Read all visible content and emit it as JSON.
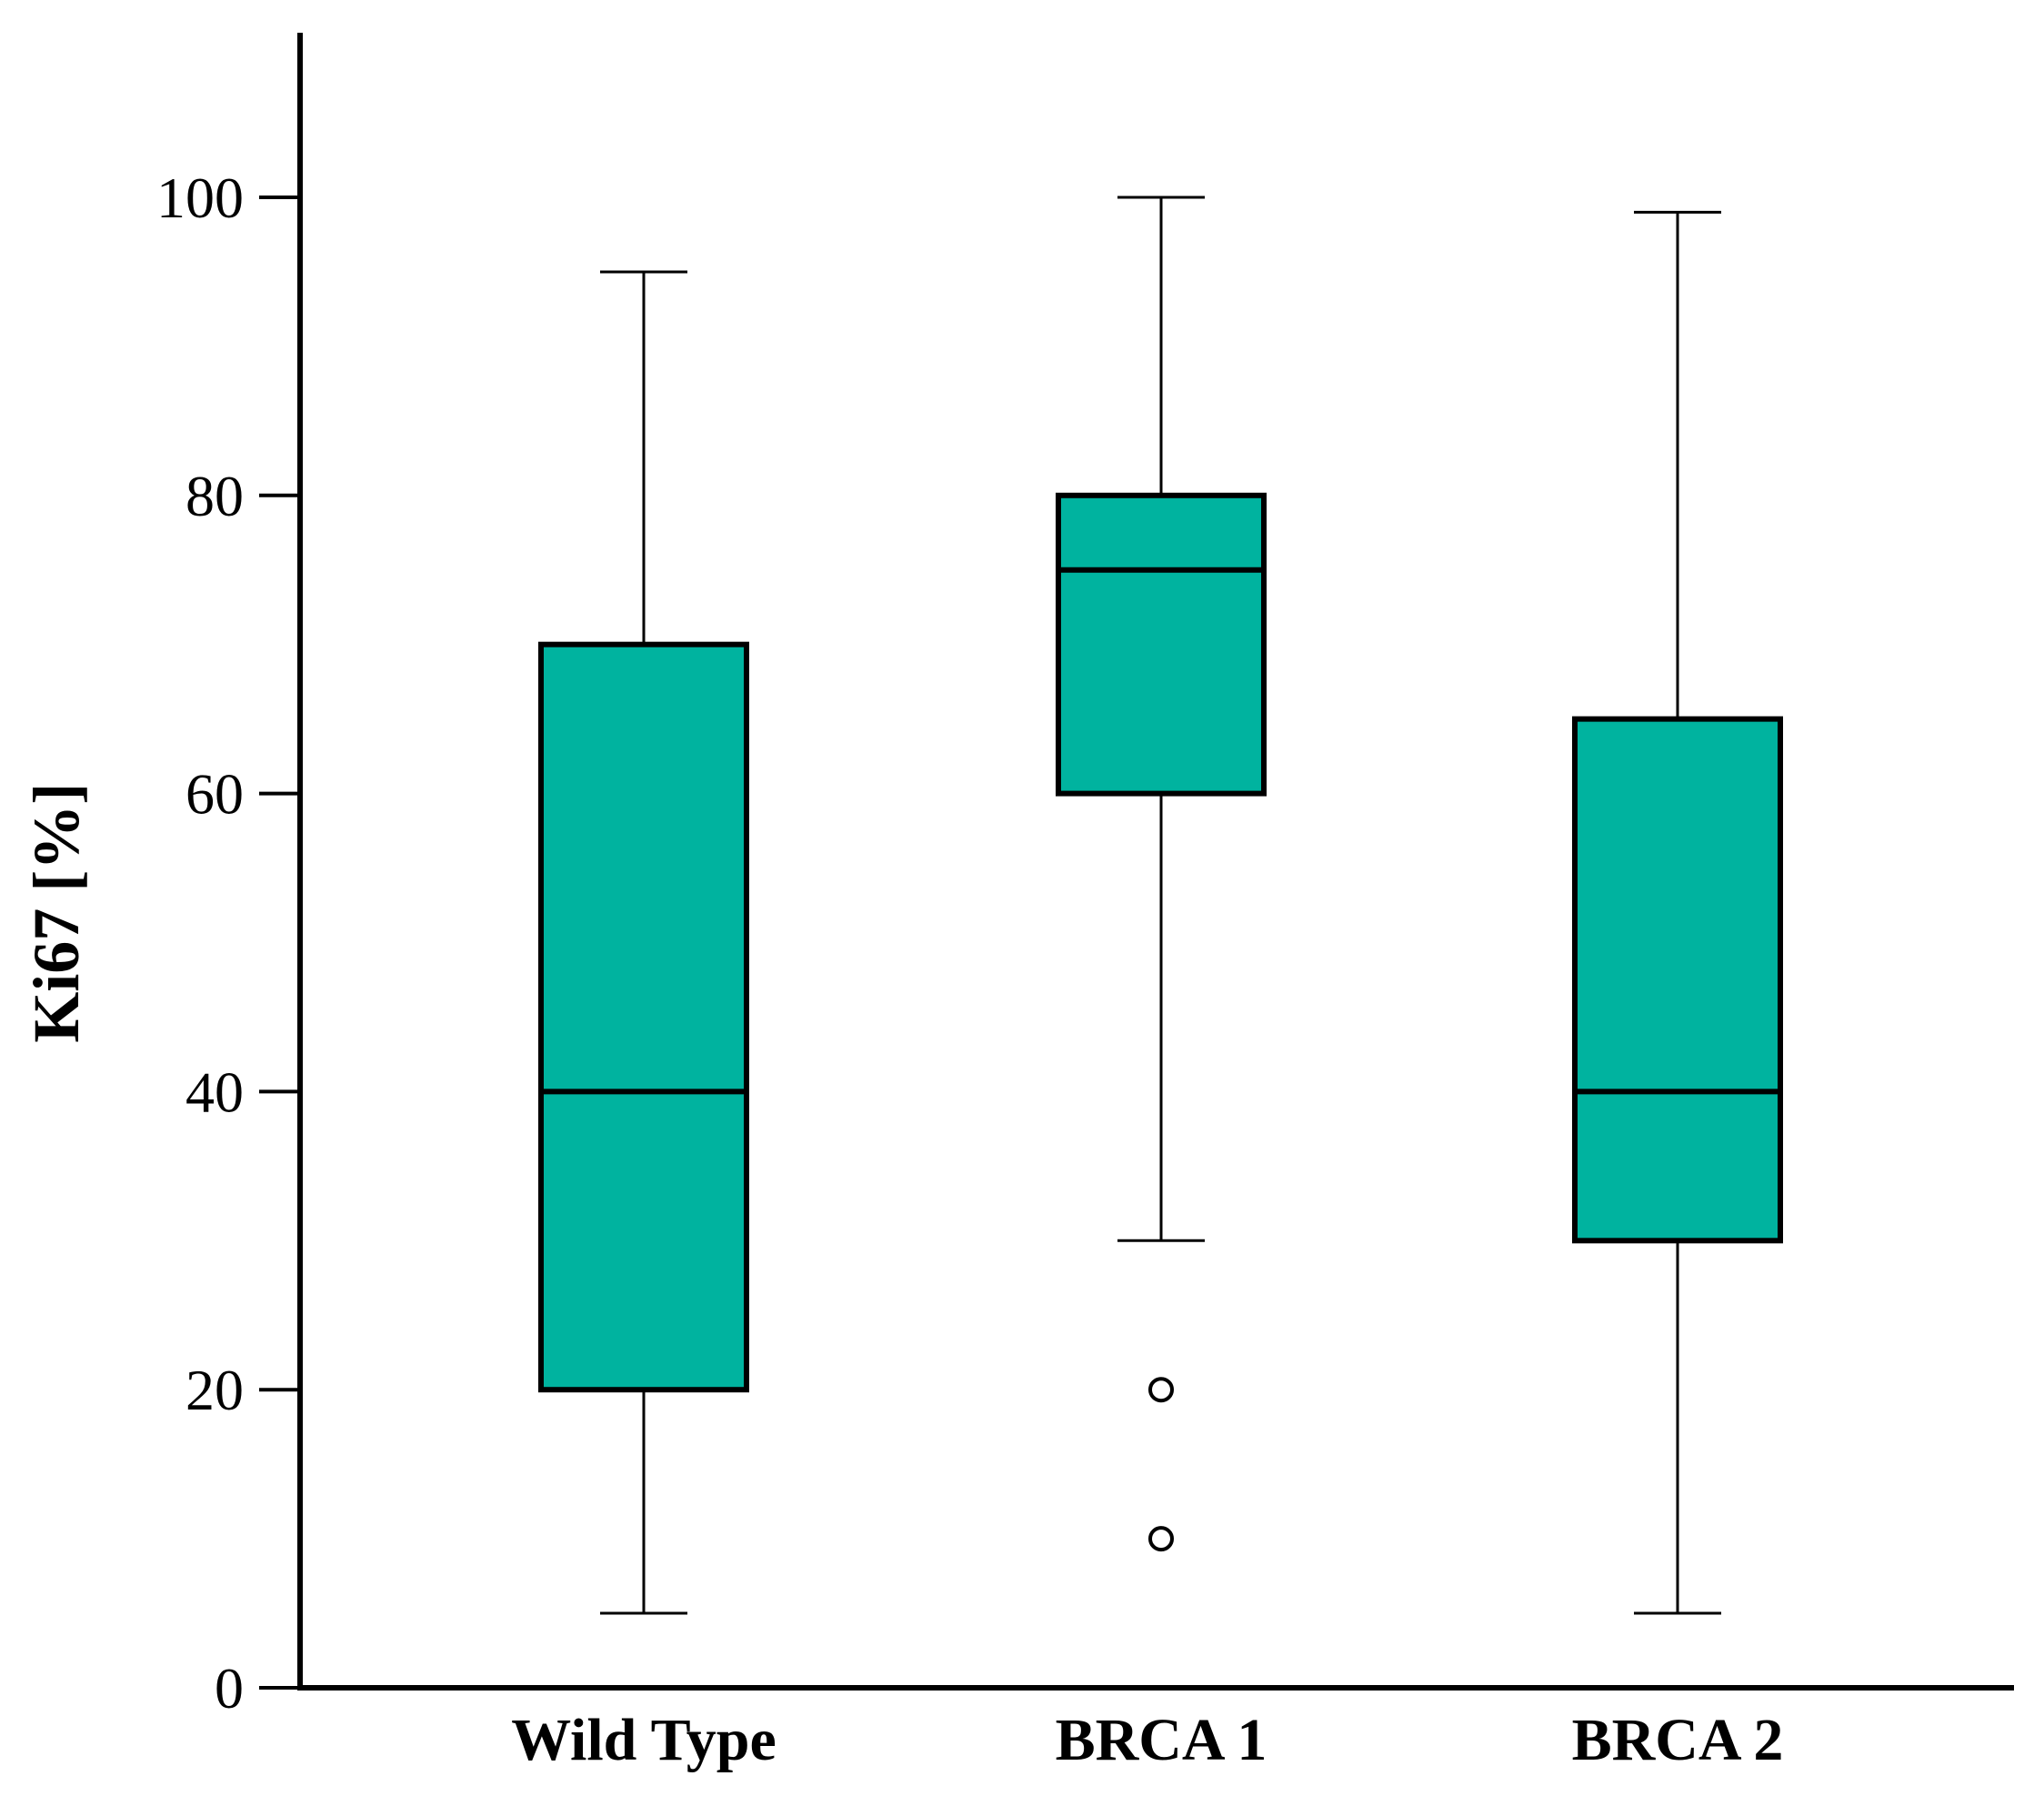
{
  "chart_data": {
    "type": "boxplot",
    "title": "",
    "xlabel": "",
    "ylabel": "Ki67 [%]",
    "ylim": [
      0,
      110
    ],
    "yticks": [
      0,
      20,
      40,
      60,
      80,
      100
    ],
    "ytick_labels": [
      "0",
      "20",
      "40",
      "60",
      "80",
      "100"
    ],
    "grid": false,
    "box_color": "#00B39F",
    "categories": [
      "Wild Type",
      "BRCA 1",
      "BRCA 2"
    ],
    "series": [
      {
        "name": "Wild Type",
        "whisker_low": 5,
        "q1": 20,
        "median": 40,
        "q3": 70,
        "whisker_high": 95,
        "outliers": []
      },
      {
        "name": "BRCA 1",
        "whisker_low": 30,
        "q1": 60,
        "median": 75,
        "q3": 80,
        "whisker_high": 100,
        "outliers": [
          20,
          10
        ]
      },
      {
        "name": "BRCA 2",
        "whisker_low": 5,
        "q1": 30,
        "median": 40,
        "q3": 65,
        "whisker_high": 99,
        "outliers": []
      }
    ]
  }
}
